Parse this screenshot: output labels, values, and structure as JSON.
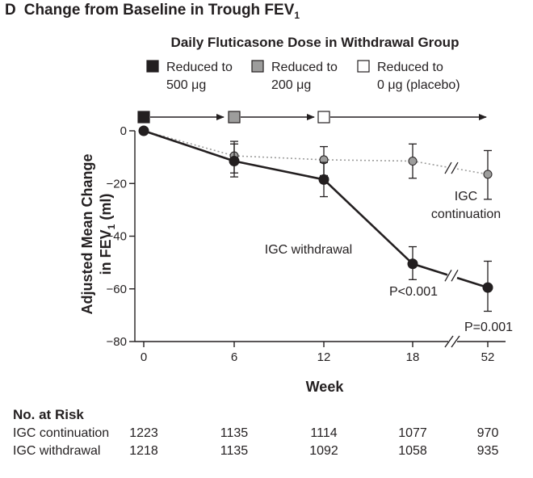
{
  "panel": {
    "letter": "D",
    "title": "Change from Baseline in Trough FEV",
    "title_sub": "1"
  },
  "legend": {
    "title": "Daily Fluticasone Dose in Withdrawal Group",
    "items": [
      {
        "line1": "Reduced to",
        "line2": "500 μg",
        "color": "#231f20"
      },
      {
        "line1": "Reduced to",
        "line2": "200 μg",
        "color": "#9d9d9c"
      },
      {
        "line1": "Reduced to",
        "line2": "0 μg (placebo)",
        "color": "#ffffff"
      }
    ]
  },
  "chart_data": {
    "type": "line",
    "title": "Change from Baseline in Trough FEV1",
    "xlabel": "Week",
    "ylabel_line1": "Adjusted Mean Change",
    "ylabel_line2": "in FEV",
    "ylabel_sub": "1",
    "ylabel_unit": " (ml)",
    "categories": [
      "0",
      "6",
      "12",
      "18",
      "52"
    ],
    "ylim": [
      -80,
      0
    ],
    "yticks": [
      0,
      -20,
      -40,
      -60,
      -80
    ],
    "ytick_labels": [
      "0",
      "−20",
      "−40",
      "−60",
      "−80"
    ],
    "dose_markers": [
      {
        "week": "0",
        "fill": "#231f20"
      },
      {
        "week": "6",
        "fill": "#9d9d9c"
      },
      {
        "week": "12",
        "fill": "#ffffff"
      }
    ],
    "series": [
      {
        "name": "IGC continuation",
        "label": "IGC continuation",
        "label_line1": "IGC",
        "label_line2": "continuation",
        "style": "dotted",
        "color": "#9d9d9c",
        "values": [
          0,
          -9.5,
          -11,
          -11.5,
          -16.5
        ],
        "err_low": [
          0,
          -16,
          -17,
          -18,
          -26
        ],
        "err_high": [
          0,
          -4,
          -6,
          -5,
          -7.5
        ]
      },
      {
        "name": "IGC withdrawal",
        "label": "IGC withdrawal",
        "style": "solid",
        "color": "#231f20",
        "values": [
          0,
          -11.5,
          -18.5,
          -50.5,
          -59.5
        ],
        "err_low": [
          0,
          -17.5,
          -25,
          -56.5,
          -68.5
        ],
        "err_high": [
          0,
          -5,
          -12,
          -44,
          -49.5
        ]
      }
    ],
    "annotations": [
      {
        "text": "P<0.001",
        "at": "18"
      },
      {
        "text": "P=0.001",
        "at": "52"
      }
    ]
  },
  "at_risk": {
    "title": "No. at Risk",
    "rows": [
      {
        "label": "IGC continuation",
        "values": [
          "1223",
          "1135",
          "1114",
          "1077",
          "970"
        ]
      },
      {
        "label": "IGC withdrawal",
        "values": [
          "1218",
          "1135",
          "1092",
          "1058",
          "935"
        ]
      }
    ]
  }
}
